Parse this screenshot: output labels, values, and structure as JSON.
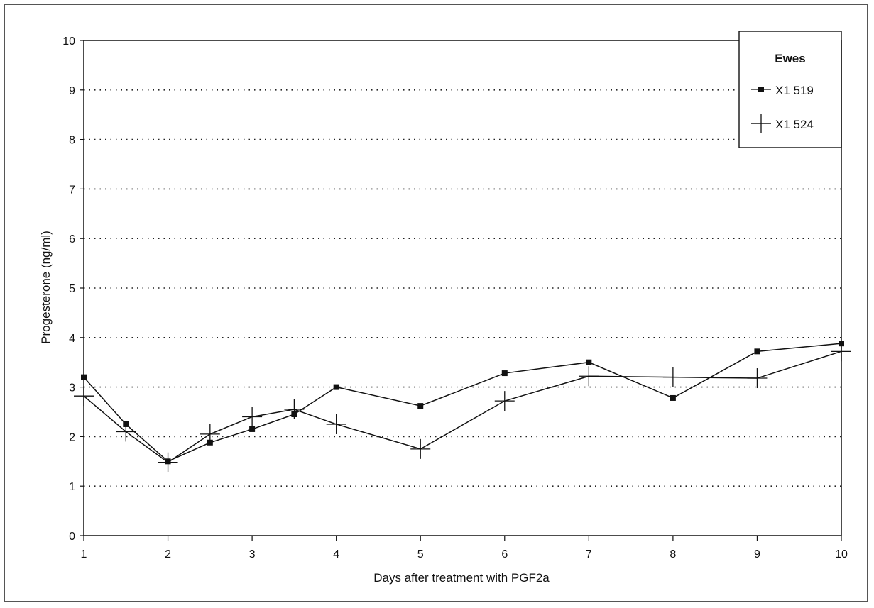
{
  "chart_data": {
    "type": "line",
    "title": "",
    "xlabel": "Days after treatment with PGF2a",
    "ylabel": "Progesterone (ng/ml)",
    "xlim": [
      1,
      10
    ],
    "ylim": [
      0,
      10
    ],
    "xticks": [
      "1",
      "2",
      "3",
      "4",
      "5",
      "6",
      "7",
      "8",
      "9",
      "10"
    ],
    "yticks": [
      "0",
      "1",
      "2",
      "3",
      "4",
      "5",
      "6",
      "7",
      "8",
      "9",
      "10"
    ],
    "grid": "horizontal dotted",
    "legend": {
      "title": "Ewes",
      "placement": "top-right"
    },
    "series": [
      {
        "name": "X1 519",
        "marker": "square",
        "x": [
          1,
          1.5,
          2,
          2.5,
          3,
          3.5,
          4,
          5,
          6,
          7,
          8,
          9,
          10
        ],
        "y": [
          3.2,
          2.25,
          1.5,
          1.88,
          2.15,
          2.45,
          3.0,
          2.62,
          3.28,
          3.5,
          2.78,
          3.72,
          3.88
        ]
      },
      {
        "name": "X1 524",
        "marker": "plus",
        "x": [
          1,
          1.5,
          2,
          2.5,
          3,
          3.5,
          4,
          5,
          6,
          7,
          8,
          9,
          10
        ],
        "y": [
          2.82,
          2.1,
          1.48,
          2.05,
          2.4,
          2.55,
          2.25,
          1.75,
          2.72,
          3.22,
          3.2,
          3.18,
          3.72
        ]
      }
    ]
  },
  "colors": {
    "line": "#111111",
    "grid": "#222222",
    "background": "#ffffff"
  }
}
